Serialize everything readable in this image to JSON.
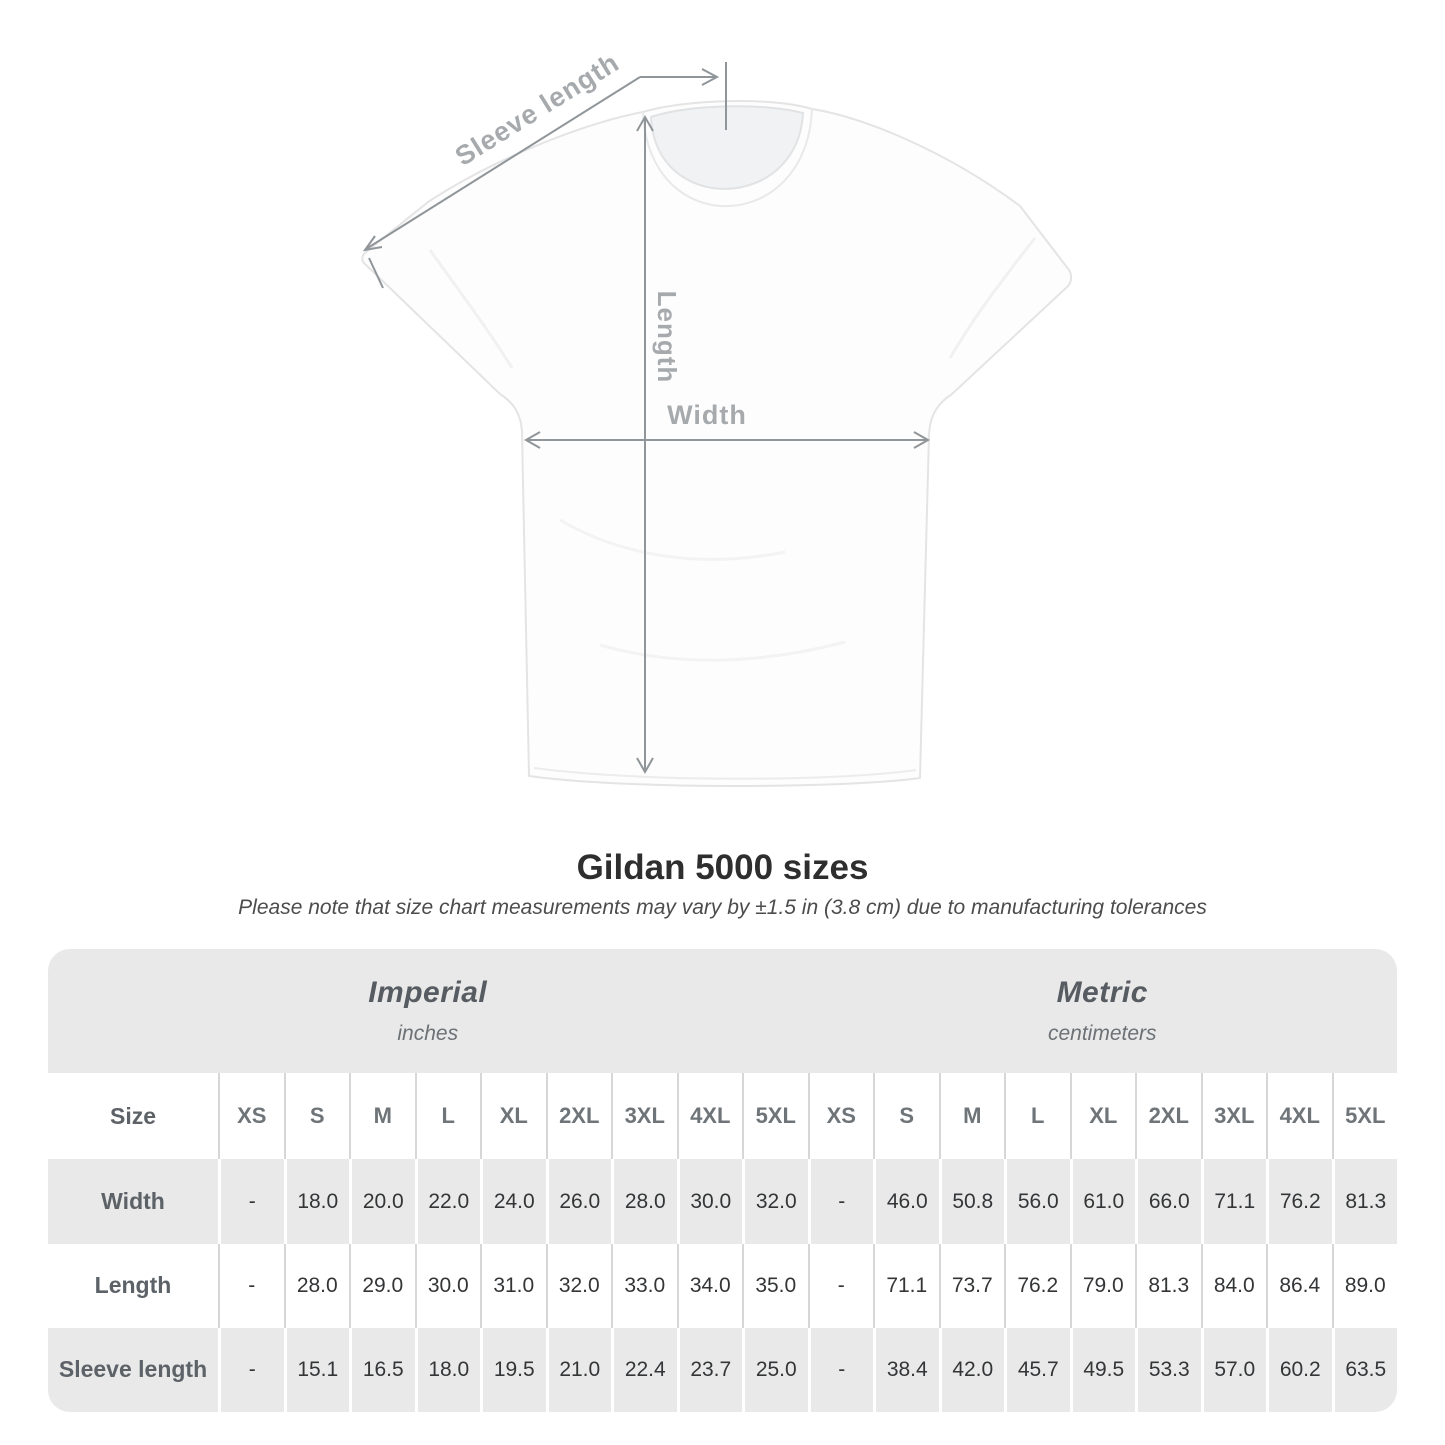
{
  "diagram": {
    "sleeve_length_label": "Sleeve length",
    "length_label": "Length",
    "width_label": "Width"
  },
  "title": "Gildan 5000 sizes",
  "note": "Please note that size chart measurements may vary by ±1.5 in (3.8 cm) due to manufacturing tolerances",
  "table": {
    "unit_groups": [
      {
        "name": "Imperial",
        "unit": "inches"
      },
      {
        "name": "Metric",
        "unit": "centimeters"
      }
    ],
    "size_label": "Size",
    "sizes": [
      "XS",
      "S",
      "M",
      "L",
      "XL",
      "2XL",
      "3XL",
      "4XL",
      "5XL"
    ],
    "rows": [
      {
        "label": "Width",
        "imperial": [
          "-",
          "18.0",
          "20.0",
          "22.0",
          "24.0",
          "26.0",
          "28.0",
          "30.0",
          "32.0"
        ],
        "metric": [
          "-",
          "46.0",
          "50.8",
          "56.0",
          "61.0",
          "66.0",
          "71.1",
          "76.2",
          "81.3"
        ]
      },
      {
        "label": "Length",
        "imperial": [
          "-",
          "28.0",
          "29.0",
          "30.0",
          "31.0",
          "32.0",
          "33.0",
          "34.0",
          "35.0"
        ],
        "metric": [
          "-",
          "71.1",
          "73.7",
          "76.2",
          "79.0",
          "81.3",
          "84.0",
          "86.4",
          "89.0"
        ]
      },
      {
        "label": "Sleeve length",
        "imperial": [
          "-",
          "15.1",
          "16.5",
          "18.0",
          "19.5",
          "21.0",
          "22.4",
          "23.7",
          "25.0"
        ],
        "metric": [
          "-",
          "38.4",
          "42.0",
          "45.7",
          "49.5",
          "53.3",
          "57.0",
          "60.2",
          "63.5"
        ]
      }
    ]
  },
  "colors": {
    "band_gray": "#e9e9e9",
    "separator_on_white": "#d7d7d7",
    "dimension_line": "#8f9598",
    "dimension_label": "#a6aaad",
    "header_text": "#6e7478",
    "value_text": "#333537",
    "title_text": "#2e2e2e"
  }
}
